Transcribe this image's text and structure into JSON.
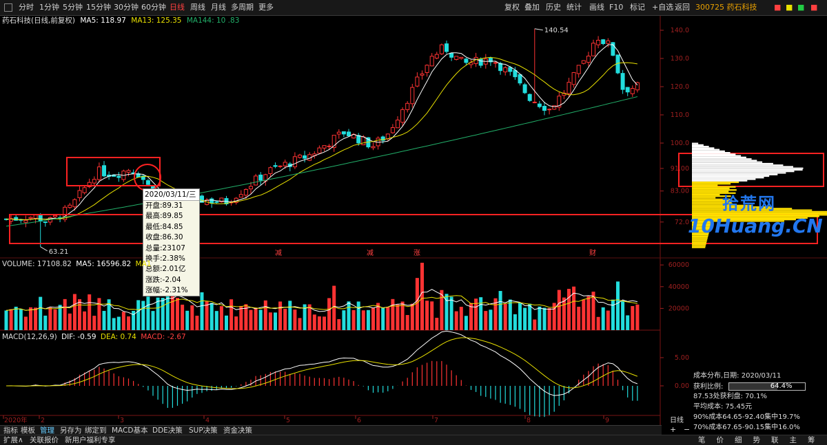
{
  "toolbar": {
    "tabs": [
      "分时",
      "1分钟",
      "5分钟",
      "15分钟",
      "30分钟",
      "60分钟",
      "日线",
      "周线",
      "月线",
      "多周期",
      "更多"
    ],
    "active_tab": "日线",
    "tools": [
      "复权",
      "叠加",
      "历史",
      "统计",
      "画线",
      "F10",
      "标记",
      "+自选",
      "返回"
    ],
    "stock": "300725 药石科技"
  },
  "info": {
    "name": "药石科技(日线,前复权)",
    "ma5": "MA5: 118.97",
    "ma13": "MA13: 125.35",
    "ma144": "MA144: 10 .83"
  },
  "price_axis": [
    "140.0",
    "130.0",
    "120.0",
    "110.0",
    "100.0",
    "91.00",
    "83.00",
    "72.0"
  ],
  "price_annotations": {
    "high": "140.54",
    "low": "63.21"
  },
  "event_markers": [
    "减",
    "涨",
    "财"
  ],
  "tooltip": {
    "date": "2020/03/11/三",
    "rows": [
      "开盘:89.31",
      "最高:89.85",
      "最低:84.85",
      "收盘:86.30",
      "总量:23107",
      "换手:2.38%",
      "总额:2.01亿",
      "涨跌:-2.04",
      "涨幅:-2.31%"
    ]
  },
  "volume": {
    "line1": "VOLUME: 17108.82",
    "line2": "MA5: 16596.82",
    "line3": "MA1",
    "axis": [
      "60000",
      "40000",
      "20000"
    ]
  },
  "macd": {
    "title": "MACD(12,26,9)",
    "dif": "DIF: -0.59",
    "dea": "DEA: 0.74",
    "macd": "MACD: -2.67",
    "axis": [
      "5.00",
      "0.00"
    ]
  },
  "time_axis": [
    "2020年",
    "2",
    "3",
    "4",
    "5",
    "6",
    "7",
    "8",
    "9"
  ],
  "period_label": "日线",
  "bottom_tabs": [
    "指标",
    "模板",
    "管理",
    "另存为",
    "绑定到",
    "MACD基本",
    "DDE决策",
    "SUP决策",
    "资金决策"
  ],
  "active_bottom": "管理",
  "status_left": [
    "扩展∧",
    "关联报价",
    "新用户福利专享"
  ],
  "status_right": [
    "笔",
    "价",
    "细",
    "势",
    "联",
    "主",
    "筹"
  ],
  "cost": {
    "title": "成本分布,日期: 2020/03/11",
    "profit_label": "获利比例:",
    "profit_value": "64.4%",
    "profit_fraction": 0.644,
    "line1": "87.53处获利盘: 70.1%",
    "line2": "平均成本: 75.45元",
    "line3": "90%成本64.65-92.40集中19.7%",
    "line4": "70%成本67.65-90.15集中16.0%"
  },
  "watermark": {
    "cn": "拾荒网",
    "en": "Huang.CN",
    "prefix": "10"
  },
  "colors": {
    "up": "#ff3333",
    "down": "#22dddd",
    "ma5": "#ffffff",
    "ma13": "#e8e000",
    "ma144": "#22b06a",
    "highlight": "#ff2222",
    "chip": "#ffe000"
  }
}
